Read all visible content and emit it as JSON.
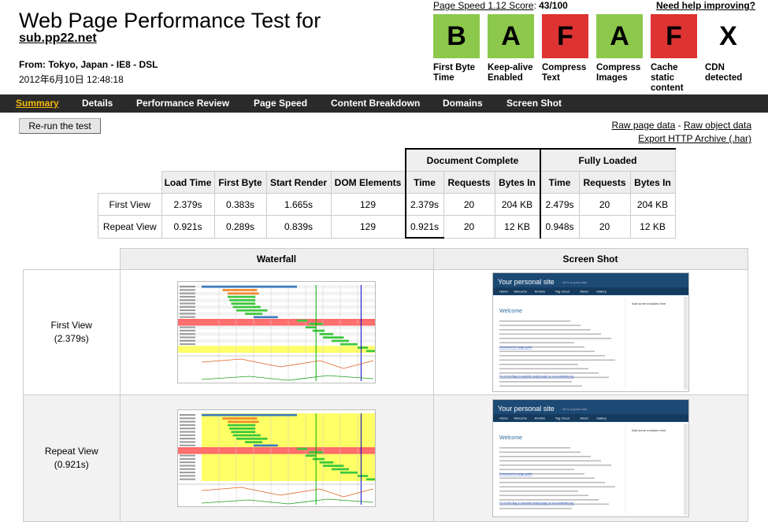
{
  "header": {
    "title": "Web Page Performance Test for",
    "url": "sub.pp22.net",
    "from": "From: Tokyo, Japan - IE8 - DSL",
    "date": "2012年6月10日 12:48:18"
  },
  "page_speed": {
    "label": "Page Speed 1.12 Score",
    "score": "43/100"
  },
  "help_link": "Need help improving?",
  "grades": [
    {
      "letter": "B",
      "label": "First Byte Time",
      "color": "#8cc84b"
    },
    {
      "letter": "A",
      "label": "Keep-alive Enabled",
      "color": "#8cc84b"
    },
    {
      "letter": "F",
      "label": "Compress Text",
      "color": "#dd3333"
    },
    {
      "letter": "A",
      "label": "Compress Images",
      "color": "#8cc84b"
    },
    {
      "letter": "F",
      "label": "Cache static content",
      "color": "#dd3333"
    },
    {
      "letter": "X",
      "label": "CDN detected",
      "color": "#ffffff"
    }
  ],
  "nav": [
    "Summary",
    "Details",
    "Performance Review",
    "Page Speed",
    "Content Breakdown",
    "Domains",
    "Screen Shot"
  ],
  "rerun_label": "Re-run the test",
  "links": {
    "raw_page": "Raw page data",
    "sep": " - ",
    "raw_object": "Raw object data",
    "export": "Export HTTP Archive (.har)"
  },
  "results": {
    "group_doc": "Document Complete",
    "group_full": "Fully Loaded",
    "headers": [
      "Load Time",
      "First Byte",
      "Start Render",
      "DOM Elements",
      "Time",
      "Requests",
      "Bytes In",
      "Time",
      "Requests",
      "Bytes In"
    ],
    "rows": [
      {
        "label": "First View",
        "cells": [
          "2.379s",
          "0.383s",
          "1.665s",
          "129",
          "2.379s",
          "20",
          "204 KB",
          "2.479s",
          "20",
          "204 KB"
        ]
      },
      {
        "label": "Repeat View",
        "cells": [
          "0.921s",
          "0.289s",
          "0.839s",
          "129",
          "0.921s",
          "20",
          "12 KB",
          "0.948s",
          "20",
          "12 KB"
        ]
      }
    ]
  },
  "media": {
    "col_waterfall": "Waterfall",
    "col_screenshot": "Screen Shot",
    "first_label": "First View",
    "first_time": "(2.379s)",
    "repeat_label": "Repeat View",
    "repeat_time": "(0.921s)"
  },
  "screenshot_site": {
    "site_title": "Your personal site",
    "tagline": "off to a great start",
    "nav": [
      "Home",
      "Welcome",
      "Archive",
      "Tag Cloud",
      "About",
      "Gallery"
    ],
    "modules": "Add some modules here",
    "heading": "Welcome",
    "link1": "Download the usage guide",
    "link2": "Go to the Blog & complete project page on sun.ordenator.org"
  }
}
